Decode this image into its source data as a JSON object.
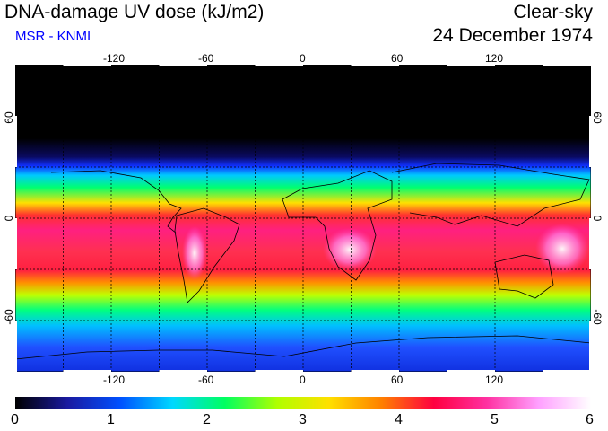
{
  "header": {
    "title": "DNA-damage UV dose (kJ/m2)",
    "source": "MSR - KNMI",
    "condition": "Clear-sky",
    "date": "24 December 1974"
  },
  "colors": {
    "source_text": "#0000ff",
    "land_outline": "#000000",
    "gridline": "#000000"
  },
  "map": {
    "projection": "equirectangular",
    "lon_range": [
      -180,
      180
    ],
    "lat_range": [
      -90,
      90
    ],
    "lon_ticks": [
      "-120",
      "-60",
      "0",
      "60",
      "120"
    ],
    "lat_ticks": [
      "60",
      "0",
      "-60"
    ],
    "gridlines": "dashed every 30 degrees"
  },
  "colorbar": {
    "labels": [
      "0",
      "1",
      "2",
      "3",
      "4",
      "5",
      "6"
    ],
    "stops": [
      "#000000",
      "#1a1aa0",
      "#0050ff",
      "#00d8ff",
      "#00ff60",
      "#b0ff00",
      "#ffe000",
      "#ff8000",
      "#ff0040",
      "#ff30a0",
      "#ffa0ff",
      "#ffffff"
    ]
  }
}
